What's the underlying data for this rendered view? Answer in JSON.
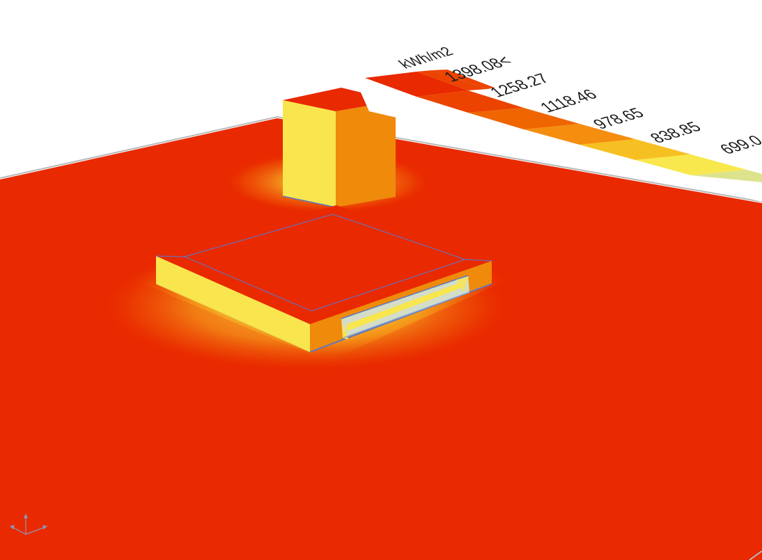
{
  "legend": {
    "unit": "kWh/m2",
    "labels": [
      "1398.08<",
      "1258.27",
      "1118.46",
      "978.65",
      "838.85",
      "699.0"
    ],
    "swatch_colors": [
      "#e92900",
      "#ec4300",
      "#ef6500",
      "#f58d0f",
      "#f7c022",
      "#f9e84d",
      "#dde38d"
    ]
  },
  "colors": {
    "ground": "#e92900",
    "high": "#e92900",
    "mid": "#ef8a0b",
    "low": "#f9e64e",
    "glazing": "#cfe6dc",
    "edge": "#5a78c4"
  },
  "axis_gizmo": {
    "icon": "axis-gizmo-icon"
  }
}
